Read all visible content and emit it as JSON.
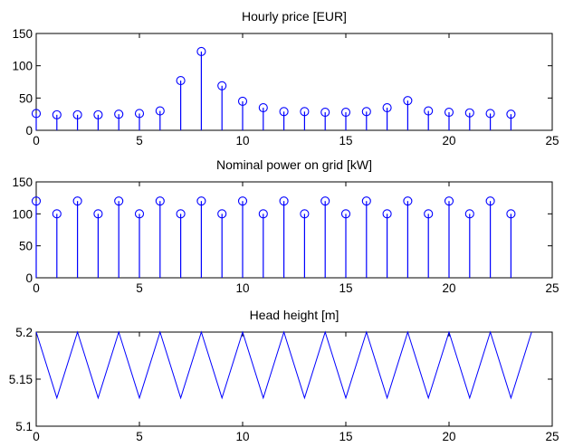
{
  "chart_data": [
    {
      "type": "stem",
      "title": "Hourly price [EUR]",
      "xlim": [
        0,
        25
      ],
      "ylim": [
        0,
        150
      ],
      "xticks": [
        "0",
        "5",
        "10",
        "15",
        "20",
        "25"
      ],
      "yticks": [
        "0",
        "50",
        "100",
        "150"
      ],
      "grid": false,
      "marker": "circle",
      "color": "#0000ff",
      "x": [
        0,
        1,
        2,
        3,
        4,
        5,
        6,
        7,
        8,
        9,
        10,
        11,
        12,
        13,
        14,
        15,
        16,
        17,
        18,
        19,
        20,
        21,
        22,
        23
      ],
      "values": [
        26,
        24,
        24,
        24,
        25,
        26,
        30,
        77,
        122,
        69,
        45,
        35,
        29,
        29,
        28,
        28,
        29,
        35,
        46,
        30,
        28,
        27,
        26,
        25
      ]
    },
    {
      "type": "stem",
      "title": "Nominal power on grid [kW]",
      "xlim": [
        0,
        25
      ],
      "ylim": [
        0,
        150
      ],
      "xticks": [
        "0",
        "5",
        "10",
        "15",
        "20",
        "25"
      ],
      "yticks": [
        "0",
        "50",
        "100",
        "150"
      ],
      "grid": false,
      "marker": "circle",
      "color": "#0000ff",
      "x": [
        0,
        1,
        2,
        3,
        4,
        5,
        6,
        7,
        8,
        9,
        10,
        11,
        12,
        13,
        14,
        15,
        16,
        17,
        18,
        19,
        20,
        21,
        22,
        23
      ],
      "values": [
        120,
        100,
        120,
        100,
        120,
        100,
        120,
        100,
        120,
        100,
        120,
        100,
        120,
        100,
        120,
        100,
        120,
        100,
        120,
        100,
        120,
        100,
        120,
        100
      ]
    },
    {
      "type": "line",
      "title": "Head height [m]",
      "xlim": [
        0,
        25
      ],
      "ylim": [
        5.1,
        5.2
      ],
      "xticks": [
        "0",
        "5",
        "10",
        "15",
        "20",
        "25"
      ],
      "yticks": [
        "5.1",
        "5.15",
        "5.2"
      ],
      "grid": false,
      "color": "#0000ff",
      "x": [
        0,
        1,
        2,
        3,
        4,
        5,
        6,
        7,
        8,
        9,
        10,
        11,
        12,
        13,
        14,
        15,
        16,
        17,
        18,
        19,
        20,
        21,
        22,
        23,
        24
      ],
      "values": [
        5.2,
        5.13,
        5.2,
        5.13,
        5.2,
        5.13,
        5.2,
        5.13,
        5.2,
        5.13,
        5.2,
        5.13,
        5.2,
        5.13,
        5.2,
        5.13,
        5.2,
        5.13,
        5.2,
        5.13,
        5.2,
        5.13,
        5.2,
        5.13,
        5.2
      ]
    }
  ]
}
